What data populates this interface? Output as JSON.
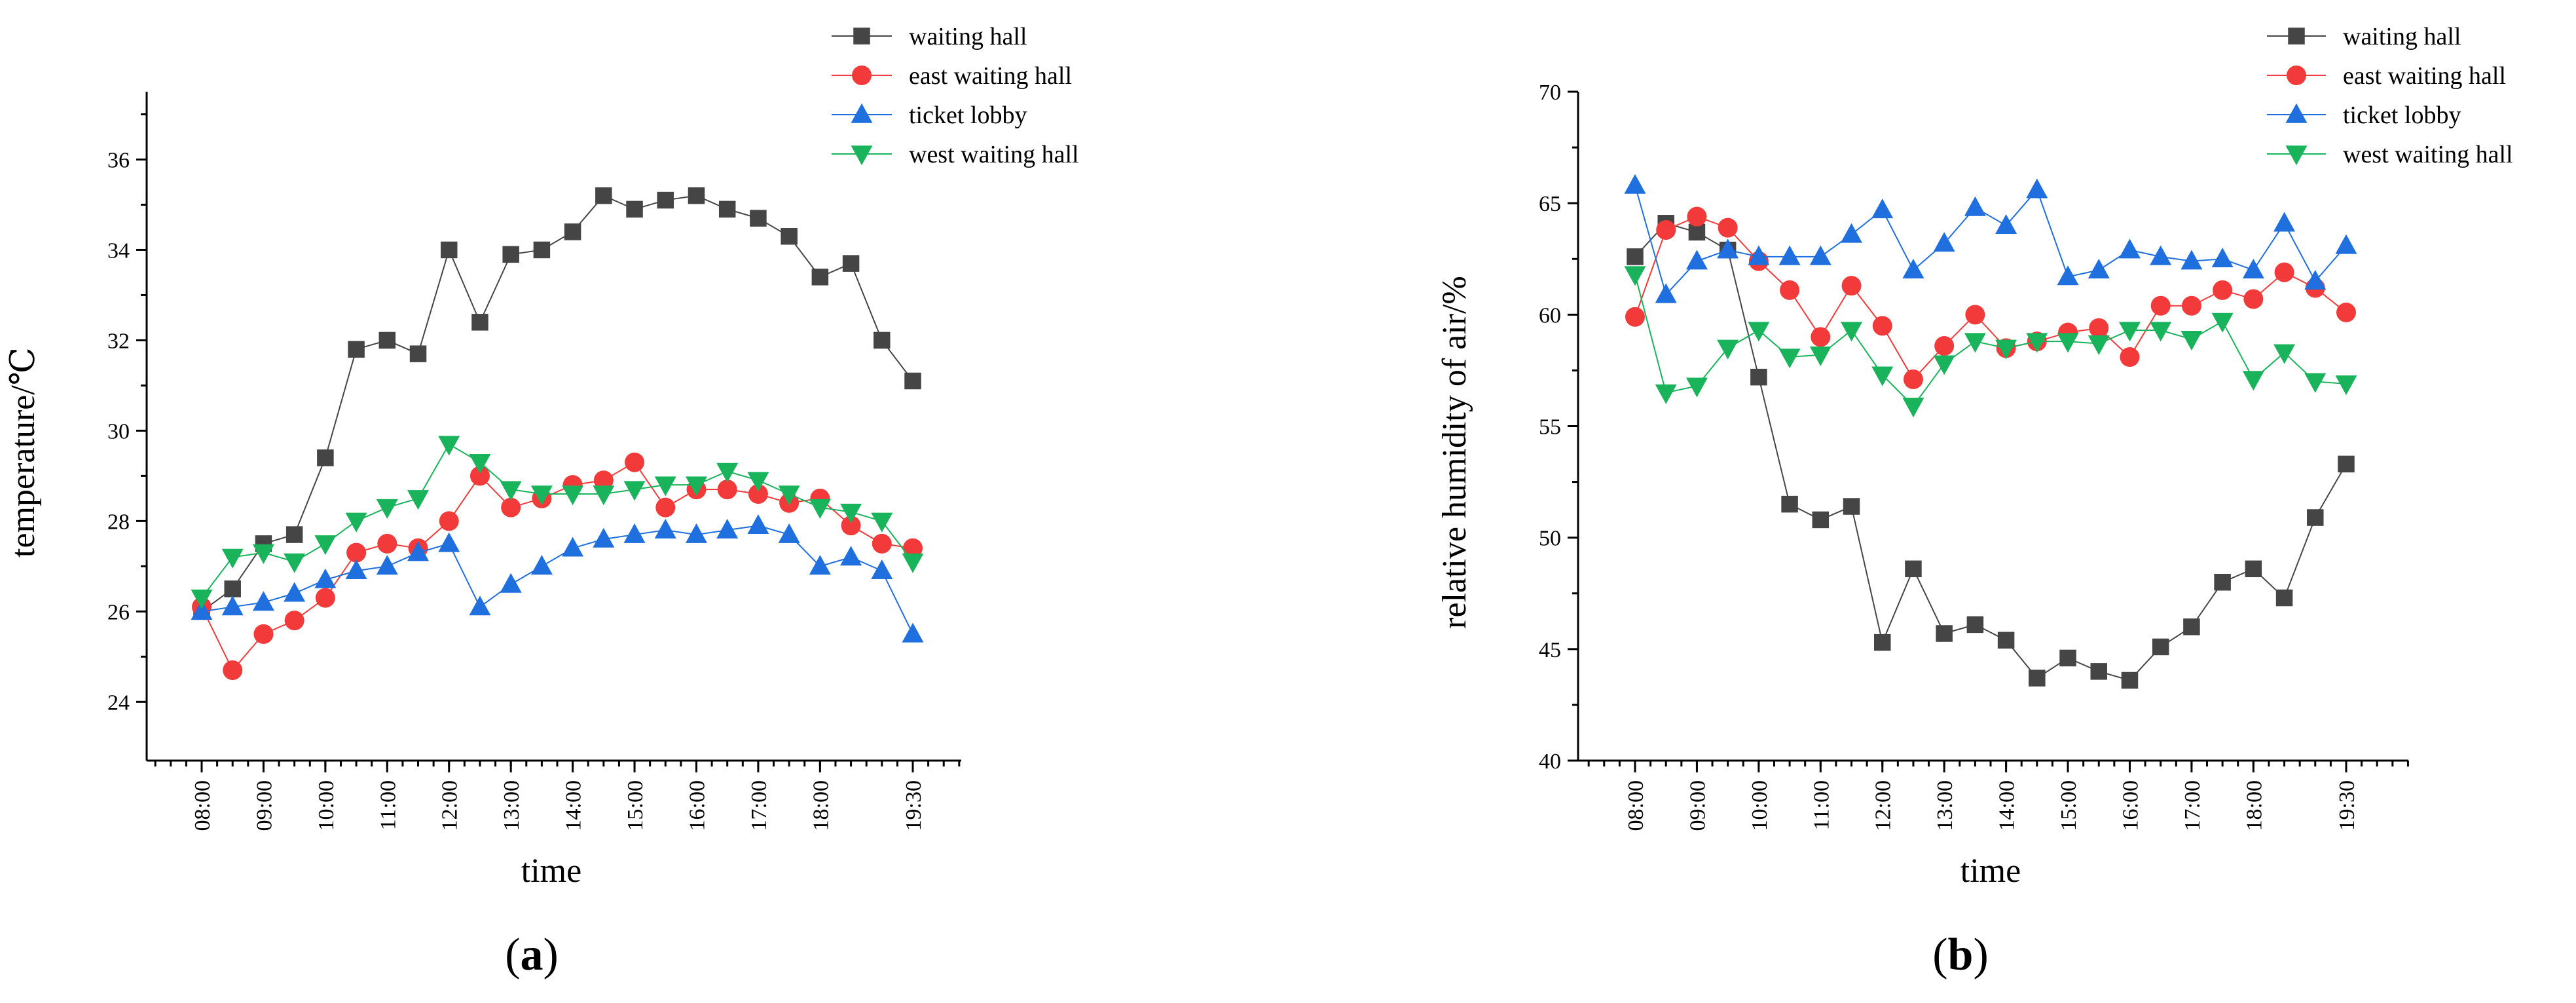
{
  "chart_data": [
    {
      "type": "line",
      "panel_label": "a",
      "xlabel": "time",
      "ylabel": "temperature/℃",
      "categories": [
        "08:00",
        "08:30",
        "09:00",
        "09:30",
        "10:00",
        "10:30",
        "11:00",
        "11:30",
        "12:00",
        "12:30",
        "13:00",
        "13:30",
        "14:00",
        "14:30",
        "15:00",
        "15:30",
        "16:00",
        "16:30",
        "17:00",
        "17:30",
        "18:00",
        "18:30",
        "19:00",
        "19:30"
      ],
      "x_tick_labels": [
        "08:00",
        "09:00",
        "10:00",
        "11:00",
        "12:00",
        "13:00",
        "14:00",
        "15:00",
        "16:00",
        "17:00",
        "18:00",
        "19:30"
      ],
      "x_tick_index": [
        0,
        2,
        4,
        6,
        8,
        10,
        12,
        14,
        16,
        18,
        20,
        23
      ],
      "ylim": [
        22.7,
        37.5
      ],
      "y_ticks": [
        24,
        26,
        28,
        30,
        32,
        34,
        36
      ],
      "legend_position": "top-right",
      "series": [
        {
          "name": "waiting hall",
          "marker": "square",
          "color": "#454545",
          "values": [
            26.0,
            26.5,
            27.5,
            27.7,
            29.4,
            31.8,
            32.0,
            31.7,
            34.0,
            32.4,
            33.9,
            34.0,
            34.4,
            35.2,
            34.9,
            35.1,
            35.2,
            34.9,
            34.7,
            34.3,
            33.4,
            33.7,
            32.0,
            31.1
          ]
        },
        {
          "name": "east waiting hall",
          "marker": "circle",
          "color": "#f23a3a",
          "values": [
            26.1,
            24.7,
            25.5,
            25.8,
            26.3,
            27.3,
            27.5,
            27.4,
            28.0,
            29.0,
            28.3,
            28.5,
            28.8,
            28.9,
            29.3,
            28.3,
            28.7,
            28.7,
            28.6,
            28.4,
            28.5,
            27.9,
            27.5,
            27.4
          ]
        },
        {
          "name": "ticket lobby",
          "marker": "triangle-up",
          "color": "#1f6fde",
          "values": [
            26.0,
            26.1,
            26.2,
            26.4,
            26.7,
            26.9,
            27.0,
            27.3,
            27.5,
            26.1,
            26.6,
            27.0,
            27.4,
            27.6,
            27.7,
            27.8,
            27.7,
            27.8,
            27.9,
            27.7,
            27.0,
            27.2,
            26.9,
            25.5
          ]
        },
        {
          "name": "west waiting hall",
          "marker": "triangle-down",
          "color": "#18b35a",
          "values": [
            26.3,
            27.2,
            27.3,
            27.1,
            27.5,
            28.0,
            28.3,
            28.5,
            29.7,
            29.3,
            28.7,
            28.6,
            28.6,
            28.6,
            28.7,
            28.8,
            28.8,
            29.1,
            28.9,
            28.6,
            28.3,
            28.2,
            28.0,
            27.1
          ]
        }
      ]
    },
    {
      "type": "line",
      "panel_label": "b",
      "xlabel": "time",
      "ylabel": "relative humidity of air/%",
      "categories": [
        "08:00",
        "08:30",
        "09:00",
        "09:30",
        "10:00",
        "10:30",
        "11:00",
        "11:30",
        "12:00",
        "12:30",
        "13:00",
        "13:30",
        "14:00",
        "14:30",
        "15:00",
        "15:30",
        "16:00",
        "16:30",
        "17:00",
        "17:30",
        "18:00",
        "18:30",
        "19:00",
        "19:30"
      ],
      "x_tick_labels": [
        "08:00",
        "09:00",
        "10:00",
        "11:00",
        "12:00",
        "13:00",
        "14:00",
        "15:00",
        "16:00",
        "17:00",
        "18:00",
        "19:30"
      ],
      "x_tick_index": [
        0,
        2,
        4,
        6,
        8,
        10,
        12,
        14,
        16,
        18,
        20,
        23
      ],
      "ylim": [
        40,
        70
      ],
      "y_ticks": [
        40,
        45,
        50,
        55,
        60,
        65,
        70
      ],
      "legend_position": "top-right",
      "series": [
        {
          "name": "waiting hall",
          "marker": "square",
          "color": "#454545",
          "values": [
            62.6,
            64.1,
            63.7,
            62.9,
            57.2,
            51.5,
            50.8,
            51.4,
            45.3,
            48.6,
            45.7,
            46.1,
            45.4,
            43.7,
            44.6,
            44.0,
            43.6,
            45.1,
            46.0,
            48.0,
            48.6,
            47.3,
            50.9,
            53.3
          ]
        },
        {
          "name": "east waiting hall",
          "marker": "circle",
          "color": "#f23a3a",
          "values": [
            59.9,
            63.8,
            64.4,
            63.9,
            62.4,
            61.1,
            59.0,
            61.3,
            59.5,
            57.1,
            58.6,
            60.0,
            58.5,
            58.8,
            59.2,
            59.4,
            58.1,
            60.4,
            60.4,
            61.1,
            60.7,
            61.9,
            61.2,
            60.1
          ]
        },
        {
          "name": "ticket lobby",
          "marker": "triangle-up",
          "color": "#1f6fde",
          "values": [
            65.8,
            60.9,
            62.4,
            62.9,
            62.6,
            62.6,
            62.6,
            63.6,
            64.7,
            62.0,
            63.2,
            64.8,
            64.0,
            65.6,
            61.7,
            62.0,
            62.9,
            62.6,
            62.4,
            62.5,
            62.0,
            64.1,
            61.5,
            63.1
          ]
        },
        {
          "name": "west waiting hall",
          "marker": "triangle-down",
          "color": "#18b35a",
          "values": [
            61.8,
            56.5,
            56.8,
            58.5,
            59.3,
            58.1,
            58.2,
            59.3,
            57.3,
            55.9,
            57.8,
            58.8,
            58.5,
            58.8,
            58.8,
            58.7,
            59.3,
            59.3,
            58.9,
            59.7,
            57.1,
            58.3,
            57.0,
            56.9
          ]
        }
      ]
    }
  ]
}
